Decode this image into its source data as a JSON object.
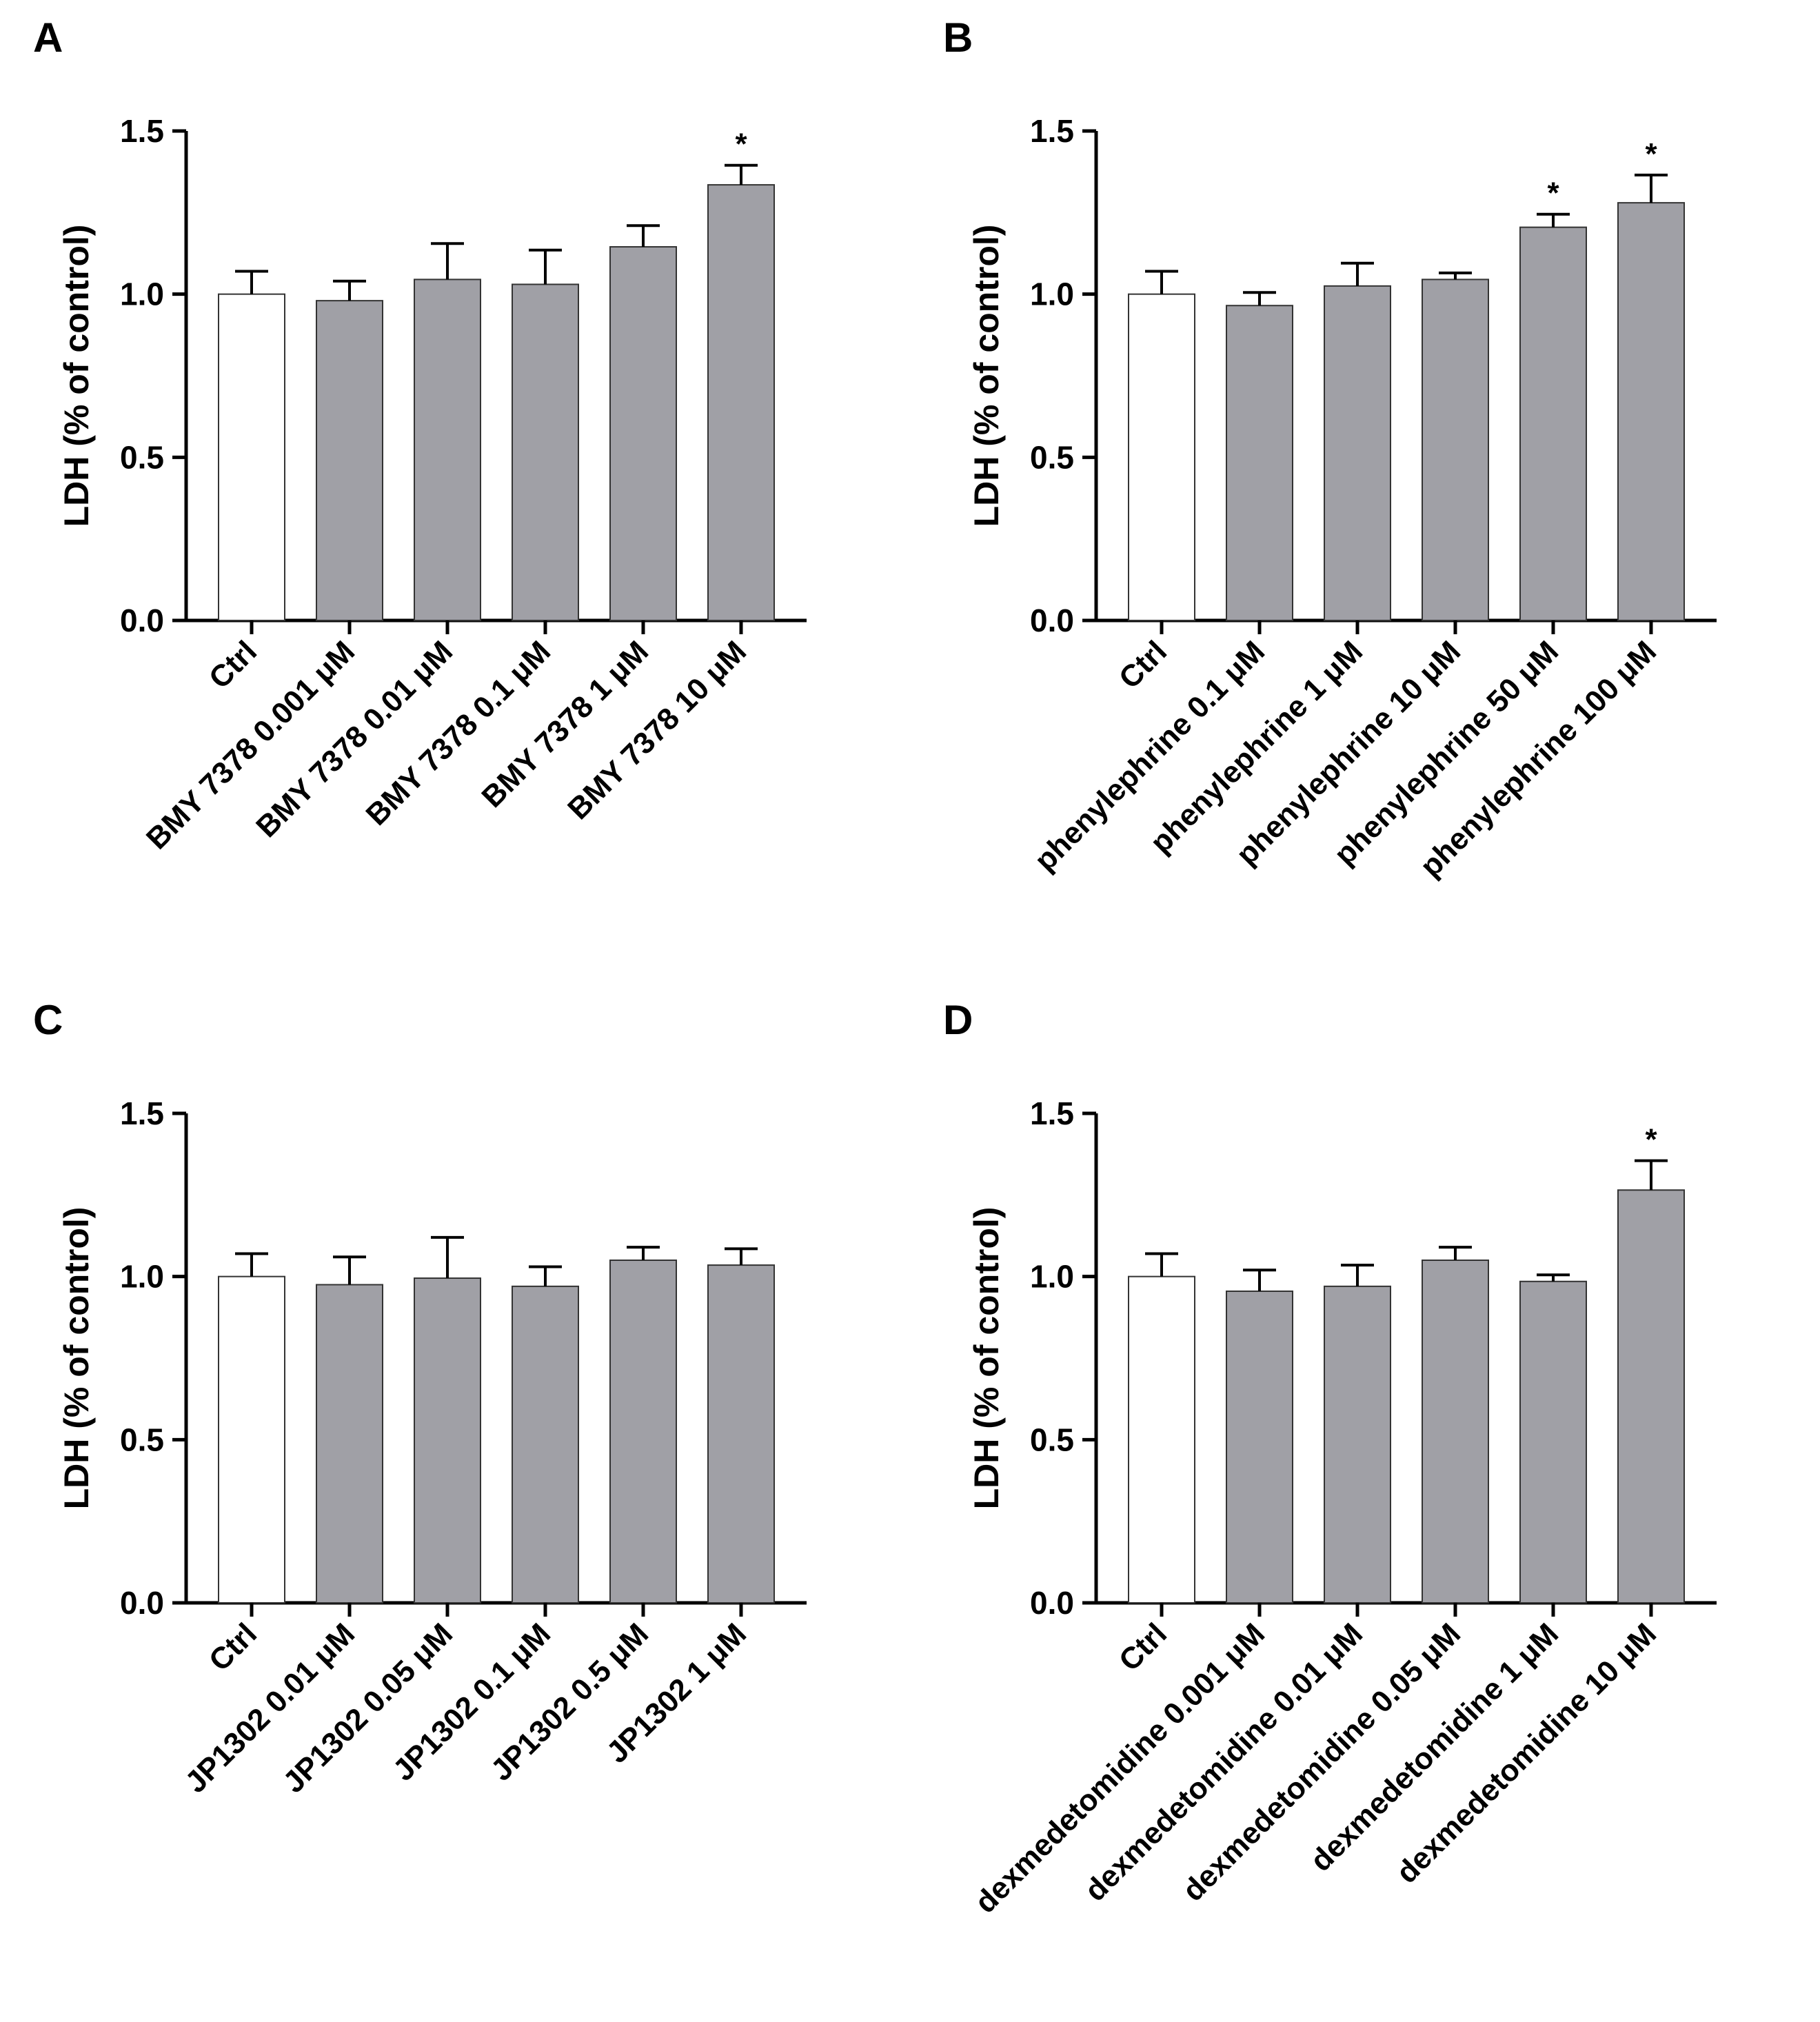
{
  "figure": {
    "panel_letters": [
      "A",
      "B",
      "C",
      "D"
    ]
  },
  "colors": {
    "control_bar": "#ffffff",
    "treated_bar": "#a0a0a6",
    "axis": "#000000"
  },
  "chart_data": [
    {
      "panel": "A",
      "type": "bar",
      "title": "",
      "xlabel": "",
      "ylabel": "LDH (% of control)",
      "ylim": [
        0,
        1.5
      ],
      "yticks": [
        "0.0",
        "0.5",
        "1.0",
        "1.5"
      ],
      "categories": [
        "Ctrl",
        "BMY 7378 0.001 μM",
        "BMY 7378 0.01 μM",
        "BMY 7378 0.1 μM",
        "BMY 7378 1 μM",
        "BMY 7378 10 μM"
      ],
      "values": [
        1.0,
        0.98,
        1.045,
        1.03,
        1.145,
        1.335
      ],
      "errors": [
        0.07,
        0.06,
        0.11,
        0.105,
        0.065,
        0.06
      ],
      "significance": [
        "",
        "",
        "",
        "",
        "",
        "*"
      ]
    },
    {
      "panel": "B",
      "type": "bar",
      "title": "",
      "xlabel": "",
      "ylabel": "LDH (% of control)",
      "ylim": [
        0,
        1.5
      ],
      "yticks": [
        "0.0",
        "0.5",
        "1.0",
        "1.5"
      ],
      "categories": [
        "Ctrl",
        "phenylephrine 0.1 μM",
        "phenylephrine 1 μM",
        "phenylephrine 10 μM",
        "phenylephrine 50 μM",
        "phenylephrine 100 μM"
      ],
      "values": [
        1.0,
        0.965,
        1.025,
        1.045,
        1.205,
        1.28
      ],
      "errors": [
        0.07,
        0.04,
        0.07,
        0.02,
        0.04,
        0.085
      ],
      "significance": [
        "",
        "",
        "",
        "",
        "*",
        "*"
      ]
    },
    {
      "panel": "C",
      "type": "bar",
      "title": "",
      "xlabel": "",
      "ylabel": "LDH (% of control)",
      "ylim": [
        0,
        1.5
      ],
      "yticks": [
        "0.0",
        "0.5",
        "1.0",
        "1.5"
      ],
      "categories": [
        "Ctrl",
        "JP1302 0.01 μM",
        "JP1302 0.05 μM",
        "JP1302 0.1 μM",
        "JP1302 0.5 μM",
        "JP1302 1 μM"
      ],
      "values": [
        1.0,
        0.975,
        0.995,
        0.97,
        1.05,
        1.035
      ],
      "errors": [
        0.07,
        0.085,
        0.125,
        0.06,
        0.04,
        0.05
      ],
      "significance": [
        "",
        "",
        "",
        "",
        "",
        ""
      ]
    },
    {
      "panel": "D",
      "type": "bar",
      "title": "",
      "xlabel": "",
      "ylabel": "LDH (% of control)",
      "ylim": [
        0,
        1.5
      ],
      "yticks": [
        "0.0",
        "0.5",
        "1.0",
        "1.5"
      ],
      "categories": [
        "Ctrl",
        "dexmedetomidine 0.001 μM",
        "dexmedetomidine 0.01 μM",
        "dexmedetomidine 0.05 μM",
        "dexmedetomidine 1 μM",
        "dexmedetomidine 10 μM"
      ],
      "values": [
        1.0,
        0.955,
        0.97,
        1.05,
        0.985,
        1.265
      ],
      "errors": [
        0.07,
        0.065,
        0.065,
        0.04,
        0.02,
        0.09
      ],
      "significance": [
        "",
        "",
        "",
        "",
        "",
        "*"
      ]
    }
  ]
}
